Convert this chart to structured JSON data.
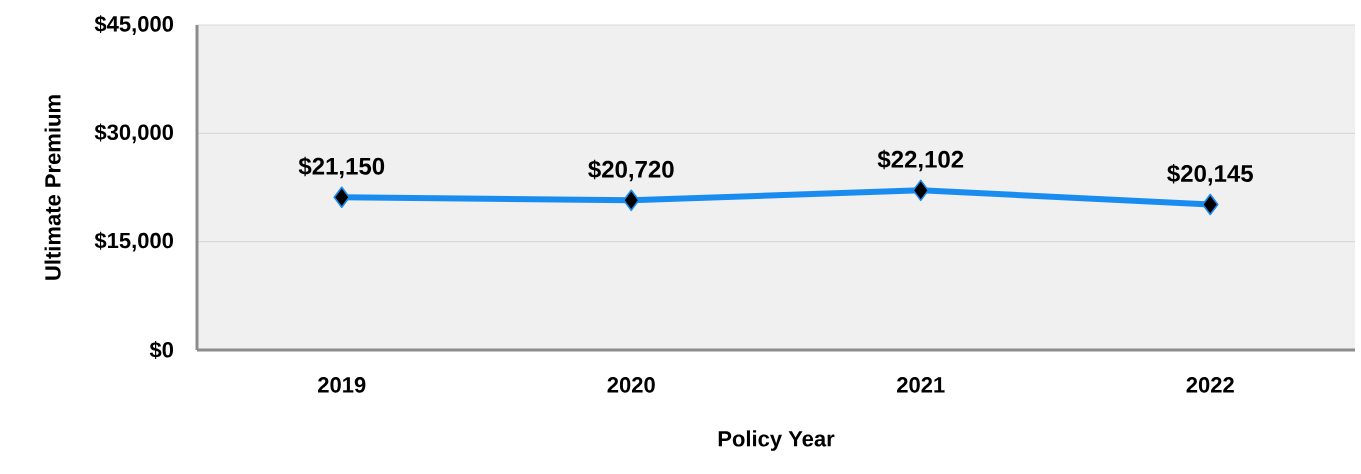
{
  "chart_data": {
    "type": "line",
    "xlabel": "Policy Year",
    "ylabel": "Ultimate Premium",
    "categories": [
      "2019",
      "2020",
      "2021",
      "2022"
    ],
    "series": [
      {
        "color": "#1a8cf0",
        "values": [
          21150,
          20720,
          22102,
          20145
        ],
        "value_labels": [
          "$21,150",
          "$20,720",
          "$22,102",
          "$20,145"
        ]
      }
    ],
    "ylim": [
      0,
      45000
    ],
    "yticks": [
      {
        "value": 0,
        "label": "$0"
      },
      {
        "value": 15000,
        "label": "$15,000"
      },
      {
        "value": 30000,
        "label": "$30,000"
      },
      {
        "value": 45000,
        "label": "$45,000"
      }
    ],
    "grid": "y",
    "marker": "diamond",
    "line_style": "solid"
  }
}
